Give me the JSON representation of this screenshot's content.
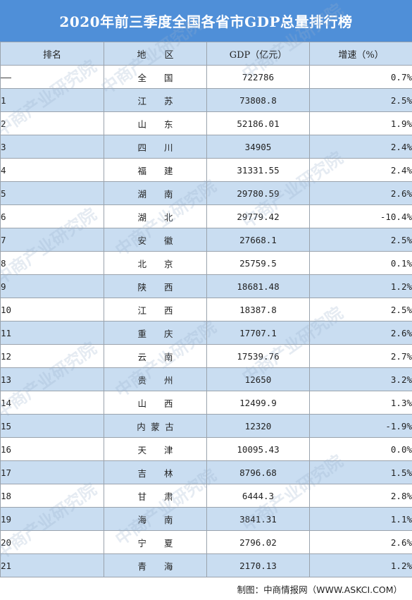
{
  "title": "2020年前三季度全国各省市GDP总量排行榜",
  "headers": {
    "rank": "排名",
    "region": "地　　区",
    "gdp": "GDP（亿元）",
    "growth": "增速（%）"
  },
  "rows": [
    {
      "rank": "——",
      "region": "全　　国",
      "gdp": "722786",
      "growth": "0.7%"
    },
    {
      "rank": "1",
      "region": "江　　苏",
      "gdp": "73808.8",
      "growth": "2.5%"
    },
    {
      "rank": "2",
      "region": "山　　东",
      "gdp": "52186.01",
      "growth": "1.9%"
    },
    {
      "rank": "3",
      "region": "四　　川",
      "gdp": "34905",
      "growth": "2.4%"
    },
    {
      "rank": "4",
      "region": "福　　建",
      "gdp": "31331.55",
      "growth": "2.4%"
    },
    {
      "rank": "5",
      "region": "湖　　南",
      "gdp": "29780.59",
      "growth": "2.6%"
    },
    {
      "rank": "6",
      "region": "湖　　北",
      "gdp": "29779.42",
      "growth": "-10.4%"
    },
    {
      "rank": "7",
      "region": "安　　徽",
      "gdp": "27668.1",
      "growth": "2.5%"
    },
    {
      "rank": "8",
      "region": "北　　京",
      "gdp": "25759.5",
      "growth": "0.1%"
    },
    {
      "rank": "9",
      "region": "陕　　西",
      "gdp": "18681.48",
      "growth": "1.2%"
    },
    {
      "rank": "10",
      "region": "江　　西",
      "gdp": "18387.8",
      "growth": "2.5%"
    },
    {
      "rank": "11",
      "region": "重　　庆",
      "gdp": "17707.1",
      "growth": "2.6%"
    },
    {
      "rank": "12",
      "region": "云　　南",
      "gdp": "17539.76",
      "growth": "2.7%"
    },
    {
      "rank": "13",
      "region": "贵　　州",
      "gdp": "12650",
      "growth": "3.2%"
    },
    {
      "rank": "14",
      "region": "山　　西",
      "gdp": "12499.9",
      "growth": "1.3%"
    },
    {
      "rank": "15",
      "region": "内 蒙 古",
      "gdp": "12320",
      "growth": "-1.9%"
    },
    {
      "rank": "16",
      "region": "天　　津",
      "gdp": "10095.43",
      "growth": "0.0%"
    },
    {
      "rank": "17",
      "region": "吉　　林",
      "gdp": "8796.68",
      "growth": "1.5%"
    },
    {
      "rank": "18",
      "region": "甘　　肃",
      "gdp": "6444.3",
      "growth": "2.8%"
    },
    {
      "rank": "19",
      "region": "海　　南",
      "gdp": "3841.31",
      "growth": "1.1%"
    },
    {
      "rank": "20",
      "region": "宁　　夏",
      "gdp": "2796.02",
      "growth": "2.6%"
    },
    {
      "rank": "21",
      "region": "青　　海",
      "gdp": "2170.13",
      "growth": "1.2%"
    }
  ],
  "footer": "制图：中商情报网（WWW.ASKCI.COM）",
  "watermark": "中商产业研究院",
  "colors": {
    "title_bg": "#4f8fd8",
    "stripe": "#c9ddf1",
    "border": "#9aa3ad"
  }
}
